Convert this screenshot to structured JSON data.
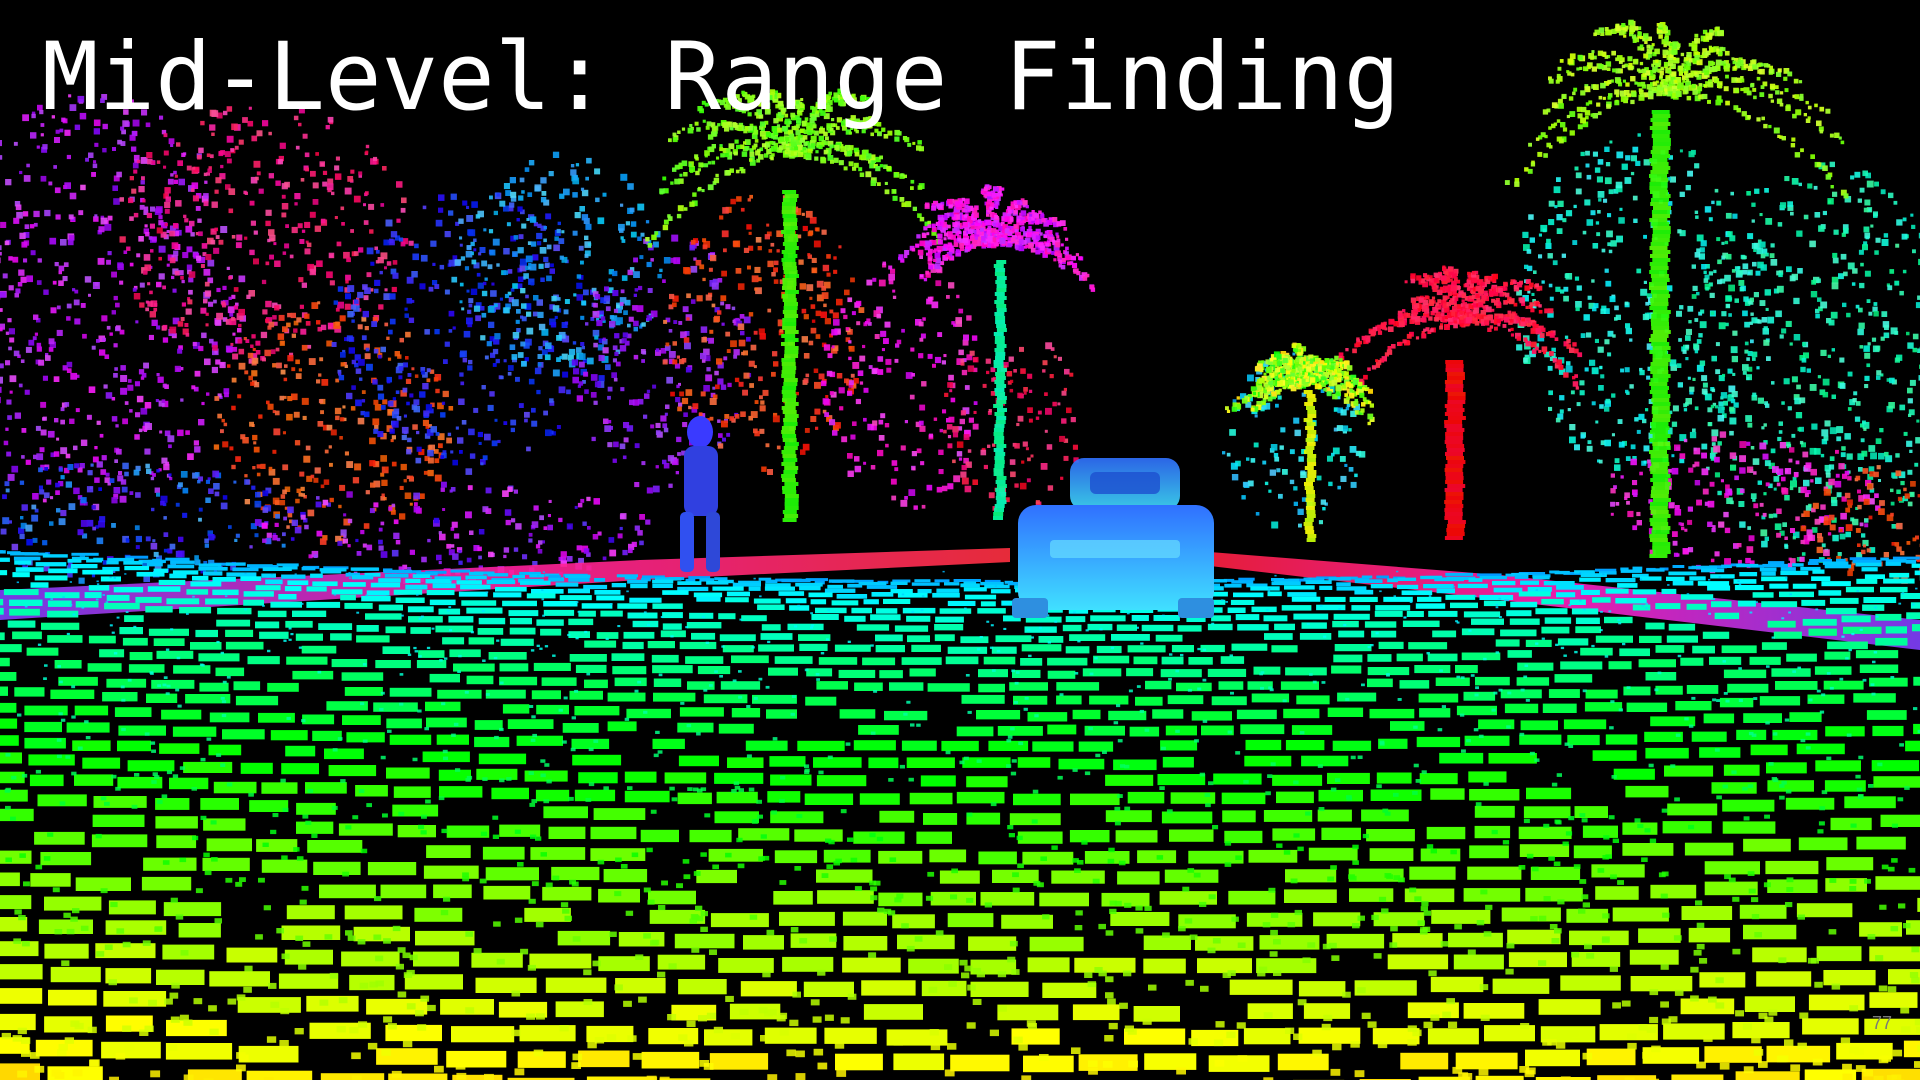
{
  "slide": {
    "title": "Mid-Level: Range Finding",
    "page_number": "77"
  },
  "image": {
    "subject": "lidar-point-cloud-street",
    "palette": {
      "background": "#000000",
      "near": "#f2f200",
      "mid": "#40e020",
      "far": "#00c0ff",
      "far2": "#8a2be2",
      "far3": "#ff1060",
      "title_text": "#ffffff"
    }
  }
}
